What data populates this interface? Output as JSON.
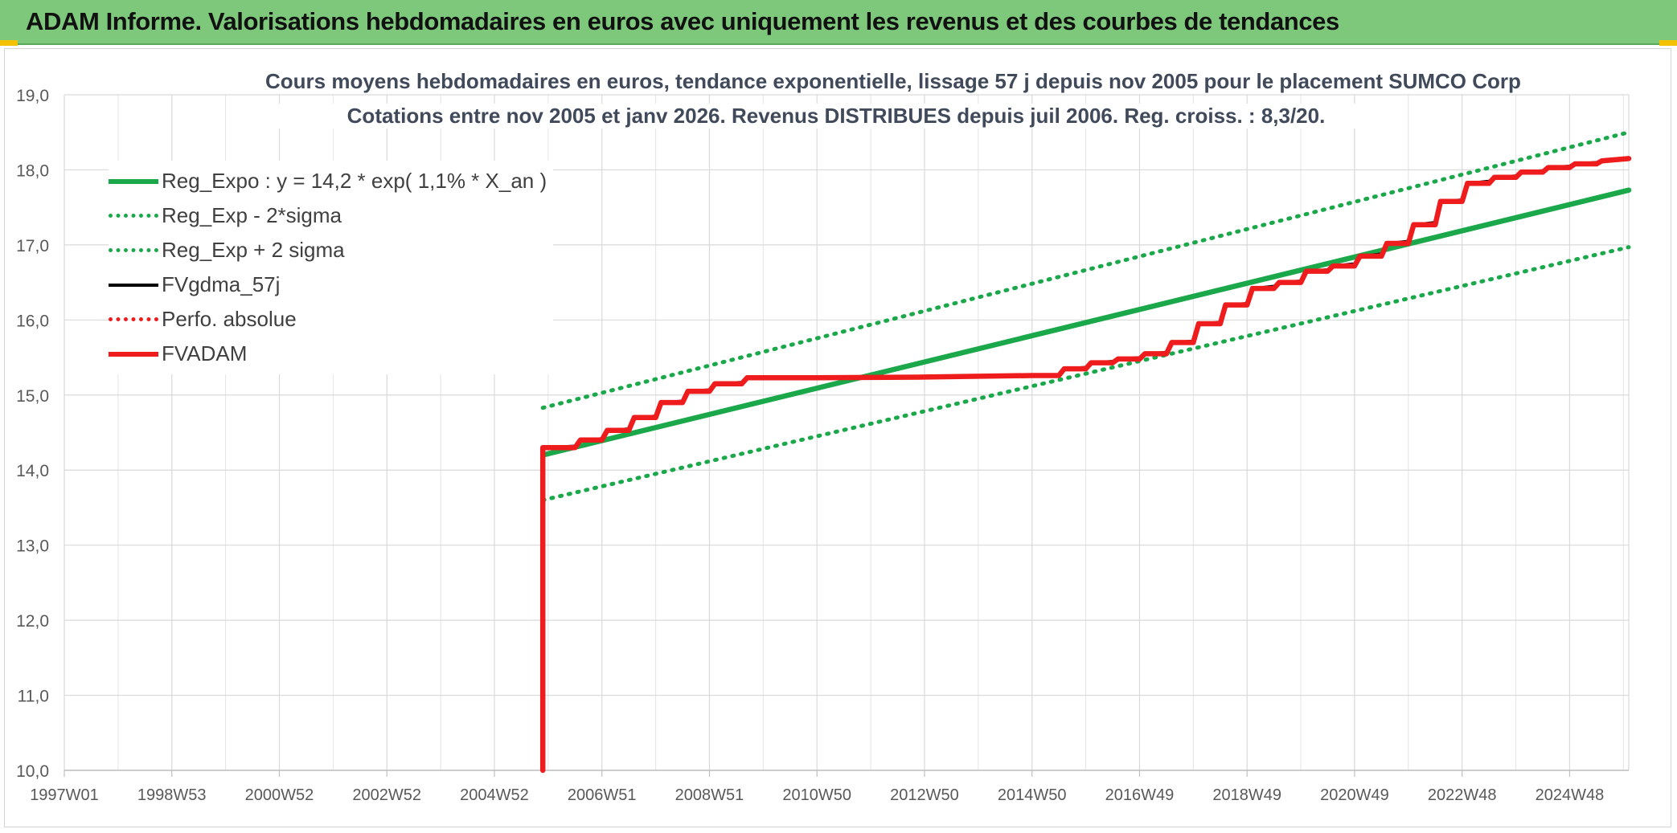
{
  "banner": {
    "title": "ADAM Informe. Valorisations hebdomadaires en euros avec uniquement les revenus et des courbes de tendances"
  },
  "colors": {
    "banner_bg": "#7dc87a",
    "trend_green": "#1aa84b",
    "fvadam_red": "#ee1c1c",
    "fvgdma_black": "#000000",
    "grid": "#d9d9d9"
  },
  "chart_data": {
    "type": "line",
    "title_line1": "Cours moyens hebdomadaires en euros, tendance exponentielle, lissage 57 j depuis nov 2005 pour le placement SUMCO Corp",
    "title_line2": "Cotations entre nov 2005 et janv 2026. Revenus DISTRIBUES depuis juil 2006. Reg. croiss. : 8,3/20.",
    "xlabel": "",
    "ylabel": "",
    "x_tick_labels": [
      "1997W01",
      "1998W53",
      "2000W52",
      "2002W52",
      "2004W52",
      "2006W51",
      "2008W51",
      "2010W50",
      "2012W50",
      "2014W50",
      "2016W49",
      "2018W49",
      "2020W49",
      "2022W48",
      "2024W48"
    ],
    "x_unit": "year",
    "xlim": [
      1997.0,
      2026.1
    ],
    "x_tick_values": [
      1997.0,
      1999.0,
      2001.0,
      2003.0,
      2005.0,
      2007.0,
      2009.0,
      2011.0,
      2013.0,
      2015.0,
      2017.0,
      2019.0,
      2021.0,
      2023.0,
      2025.0
    ],
    "ylim": [
      10.0,
      19.0
    ],
    "y_tick_labels": [
      "10,0",
      "11,0",
      "12,0",
      "13,0",
      "14,0",
      "15,0",
      "16,0",
      "17,0",
      "18,0",
      "19,0"
    ],
    "grid": true,
    "legend_position": "top-left",
    "series": [
      {
        "name": "Reg_Expo : y = 14,2 * exp( 1,1% *  X_an )",
        "style": "solid-thick",
        "color": "#1aa84b",
        "x": [
          2005.9,
          2026.1
        ],
        "y": [
          14.2,
          17.73
        ]
      },
      {
        "name": "Reg_Exp - 2*sigma",
        "style": "dotted",
        "color": "#1aa84b",
        "x": [
          2005.9,
          2026.1
        ],
        "y": [
          13.6,
          16.97
        ]
      },
      {
        "name": "Reg_Exp + 2 sigma",
        "style": "dotted",
        "color": "#1aa84b",
        "x": [
          2005.9,
          2026.1
        ],
        "y": [
          14.83,
          18.5
        ]
      },
      {
        "name": "FVgdma_57j",
        "style": "solid",
        "color": "#000000",
        "x": [
          2005.9,
          2006.5,
          2006.6,
          2007.0,
          2007.1,
          2007.5,
          2007.6,
          2008.0,
          2008.1,
          2008.5,
          2008.6,
          2009.0,
          2009.1,
          2009.6,
          2009.7,
          2011.0,
          2013.0,
          2015.0,
          2015.5,
          2015.6,
          2016.0,
          2016.1,
          2016.5,
          2016.6,
          2017.0,
          2017.1,
          2017.5,
          2017.6,
          2018.0,
          2018.1,
          2018.5,
          2018.6,
          2019.0,
          2019.1,
          2019.5,
          2019.6,
          2020.0,
          2020.1,
          2020.5,
          2020.6,
          2021.0,
          2021.1,
          2021.5,
          2021.6,
          2022.0,
          2022.1,
          2022.5,
          2022.6,
          2023.0,
          2023.1,
          2023.5,
          2023.6,
          2024.0,
          2024.1,
          2024.5,
          2024.6,
          2025.0,
          2025.1,
          2025.5,
          2025.6,
          2026.1
        ],
        "y": [
          14.3,
          14.32,
          14.4,
          14.42,
          14.53,
          14.55,
          14.7,
          14.72,
          14.9,
          14.92,
          15.05,
          15.07,
          15.15,
          15.17,
          15.23,
          15.23,
          15.24,
          15.26,
          15.27,
          15.35,
          15.37,
          15.43,
          15.45,
          15.48,
          15.5,
          15.55,
          15.57,
          15.7,
          15.72,
          15.95,
          15.97,
          16.2,
          16.22,
          16.42,
          16.45,
          16.5,
          16.52,
          16.65,
          16.67,
          16.72,
          16.75,
          16.85,
          16.88,
          17.02,
          17.05,
          17.27,
          17.3,
          17.58,
          17.6,
          17.82,
          17.85,
          17.9,
          17.92,
          17.97,
          17.99,
          18.03,
          18.05,
          18.08,
          18.1,
          18.12,
          18.15
        ]
      },
      {
        "name": "Perfo. absolue",
        "style": "dotted",
        "color": "#ee1c1c",
        "x": [],
        "y": []
      },
      {
        "name": "FVADAM",
        "style": "solid-thick",
        "color": "#ee1c1c",
        "x": [
          2005.9,
          2005.9,
          2006.5,
          2006.6,
          2007.0,
          2007.1,
          2007.5,
          2007.6,
          2008.0,
          2008.1,
          2008.5,
          2008.6,
          2009.0,
          2009.1,
          2009.6,
          2009.7,
          2011.0,
          2013.0,
          2015.0,
          2015.5,
          2015.6,
          2016.0,
          2016.1,
          2016.5,
          2016.6,
          2017.0,
          2017.1,
          2017.5,
          2017.6,
          2018.0,
          2018.1,
          2018.5,
          2018.6,
          2019.0,
          2019.1,
          2019.5,
          2019.6,
          2020.0,
          2020.1,
          2020.5,
          2020.6,
          2021.0,
          2021.1,
          2021.5,
          2021.6,
          2022.0,
          2022.1,
          2022.5,
          2022.6,
          2023.0,
          2023.1,
          2023.5,
          2023.6,
          2024.0,
          2024.1,
          2024.5,
          2024.6,
          2025.0,
          2025.1,
          2025.5,
          2025.6,
          2026.1
        ],
        "y": [
          10.0,
          14.3,
          14.3,
          14.4,
          14.4,
          14.53,
          14.53,
          14.7,
          14.7,
          14.9,
          14.9,
          15.05,
          15.05,
          15.15,
          15.15,
          15.23,
          15.23,
          15.24,
          15.26,
          15.26,
          15.35,
          15.35,
          15.43,
          15.43,
          15.48,
          15.48,
          15.55,
          15.55,
          15.7,
          15.7,
          15.95,
          15.95,
          16.2,
          16.2,
          16.42,
          16.42,
          16.5,
          16.5,
          16.65,
          16.65,
          16.72,
          16.72,
          16.85,
          16.85,
          17.02,
          17.02,
          17.27,
          17.27,
          17.58,
          17.58,
          17.82,
          17.82,
          17.9,
          17.9,
          17.97,
          17.97,
          18.03,
          18.03,
          18.08,
          18.08,
          18.12,
          18.15
        ]
      }
    ]
  }
}
